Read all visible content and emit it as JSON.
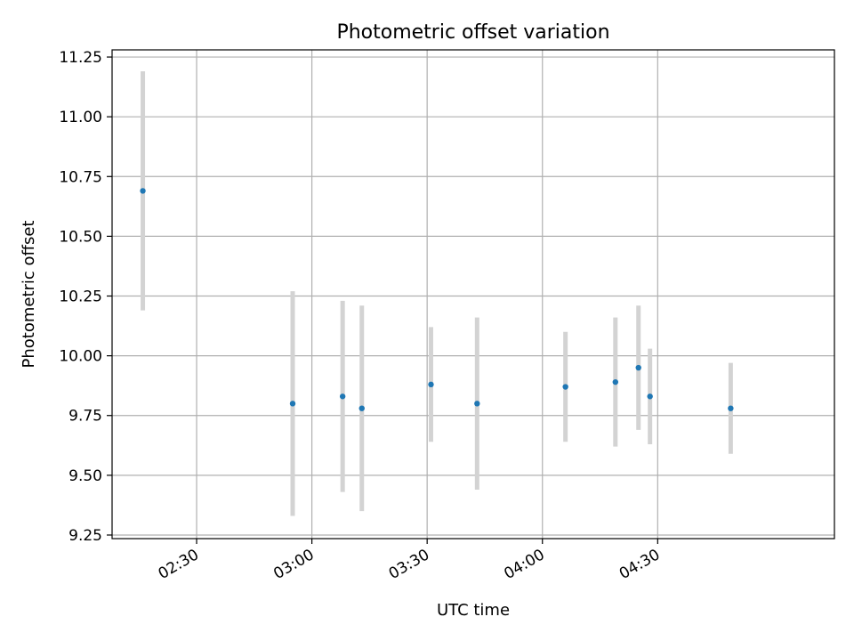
{
  "chart_data": {
    "type": "scatter",
    "title": "Photometric offset variation",
    "xlabel": "UTC time",
    "ylabel": "Photometric offset",
    "ylim": [
      9.235,
      11.28
    ],
    "xlim": [
      "02:08",
      "05:16"
    ],
    "y_ticks": [
      "9.25",
      "9.50",
      "9.75",
      "10.00",
      "10.25",
      "10.50",
      "10.75",
      "11.00",
      "11.25"
    ],
    "x_ticks": [
      "02:30",
      "03:00",
      "03:30",
      "04:00",
      "04:30"
    ],
    "grid": true,
    "colors": {
      "points": "#1f77b4",
      "errorbars": "#d3d3d3",
      "grid": "#b0b0b0"
    },
    "points": [
      {
        "x": "02:16",
        "y": 10.69,
        "err": 0.5
      },
      {
        "x": "02:55",
        "y": 9.8,
        "err": 0.47
      },
      {
        "x": "03:08",
        "y": 9.83,
        "err": 0.4
      },
      {
        "x": "03:13",
        "y": 9.78,
        "err": 0.43
      },
      {
        "x": "03:31",
        "y": 9.88,
        "err": 0.24
      },
      {
        "x": "03:43",
        "y": 9.8,
        "err": 0.36
      },
      {
        "x": "04:06",
        "y": 9.87,
        "err": 0.23
      },
      {
        "x": "04:19",
        "y": 9.89,
        "err": 0.27
      },
      {
        "x": "04:25",
        "y": 9.95,
        "err": 0.26
      },
      {
        "x": "04:28",
        "y": 9.83,
        "err": 0.2
      },
      {
        "x": "04:49",
        "y": 9.78,
        "err": 0.19
      }
    ]
  }
}
